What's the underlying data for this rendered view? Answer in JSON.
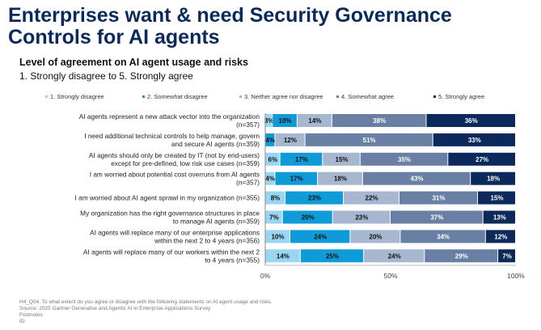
{
  "title": "Enterprises want & need Security Governance Controls for AI agents",
  "chart_data": {
    "type": "bar",
    "orientation": "horizontal-stacked-100",
    "title": "Level of agreement on AI agent usage and risks",
    "subtitle": "1. Strongly disagree to 5. Strongly agree",
    "series_names": [
      "1. Strongly disagree",
      "2. Somewhat disagree",
      "3. Neither agree nor disagree",
      "4. Somewhat agree",
      "5. Strongly agree"
    ],
    "colors": [
      "#9ad6f1",
      "#0f9bd7",
      "#a7b7d0",
      "#6a7fa4",
      "#0b2a5b"
    ],
    "categories": [
      "AI agents represent a new attack vector into the organization (n=357)",
      "I need additional technical controls to help manage, govern and secure AI agents (n=359)",
      "AI agents should only be created by IT (not by end-users) except for pre-defined, low risk use cases (n=359)",
      "I am worried about potential cost overruns from AI agents (n=357)",
      "I am worried about AI agent sprawl in my organization (n=355)",
      "My organization has the right governance structures in place to manage AI agents (n=359)",
      "AI agents will replace many of our enterprise applications within the next 2 to 4 years (n=356)",
      "AI agents will replace many of our workers within the next 2 to 4 years (n=355)"
    ],
    "values": [
      [
        3,
        10,
        14,
        38,
        36
      ],
      [
        0,
        4,
        12,
        51,
        33
      ],
      [
        6,
        17,
        15,
        35,
        27
      ],
      [
        4,
        17,
        18,
        43,
        18
      ],
      [
        8,
        23,
        22,
        31,
        15
      ],
      [
        7,
        20,
        23,
        37,
        13
      ],
      [
        10,
        24,
        20,
        34,
        12
      ],
      [
        14,
        25,
        24,
        29,
        7
      ]
    ],
    "xticks": [
      "0%",
      "50%",
      "100%"
    ],
    "xlim": [
      0,
      100
    ],
    "legend": "top"
  },
  "footer": [
    "H4_Q04. To what extent do you agree or disagree with the following statements on AI agent usage and risks.",
    "Source: 2025 Gartner Generative and Agentic AI in Enterprise Applications Survey",
    "Footnotes",
    "ID:"
  ]
}
